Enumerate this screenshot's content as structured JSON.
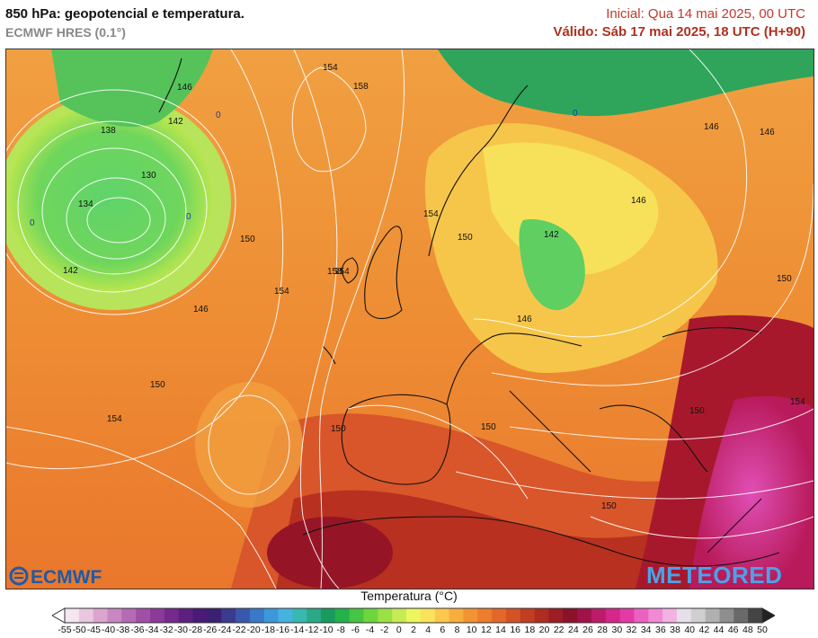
{
  "header": {
    "title": "850 hPa: geopotencial e temperatura.",
    "model": "ECMWF HRES (0.1°)",
    "run_init": "Inicial: Qua 14 mai 2025, 00 UTC",
    "valid_time": "Válido: Sáb 17 mai 2025, 18 UTC (H+90)"
  },
  "map": {
    "contour_labels": [
      "154",
      "158",
      "146",
      "142",
      "138",
      "130",
      "134",
      "142",
      "146",
      "150",
      "154",
      "158",
      "150",
      "154",
      "150",
      "146",
      "154",
      "150",
      "154",
      "150",
      "142",
      "146",
      "146",
      "150",
      "150",
      "146",
      "154",
      "150",
      "154"
    ],
    "freezing_labels": [
      "0",
      "0",
      "0",
      "0"
    ],
    "logos": {
      "left": "ECMWF",
      "right": "METEORED"
    }
  },
  "colorbar": {
    "title": "Temperatura (°C)",
    "ticks": [
      "-55",
      "-50",
      "-45",
      "-40",
      "-38",
      "-36",
      "-34",
      "-32",
      "-30",
      "-28",
      "-26",
      "-24",
      "-22",
      "-20",
      "-18",
      "-16",
      "-14",
      "-12",
      "-10",
      "-8",
      "-6",
      "-4",
      "-2",
      "0",
      "2",
      "4",
      "6",
      "8",
      "10",
      "12",
      "14",
      "16",
      "18",
      "20",
      "22",
      "24",
      "26",
      "28",
      "30",
      "32",
      "34",
      "36",
      "38",
      "40",
      "42",
      "44",
      "46",
      "48",
      "50"
    ],
    "colors": [
      "#f6e6f0",
      "#e9c7e0",
      "#dba5d0",
      "#c887c2",
      "#b56ab4",
      "#a04fa6",
      "#8c3a99",
      "#742a8b",
      "#5e2080",
      "#4a1a78",
      "#3a1f72",
      "#3a3a8e",
      "#3958ad",
      "#3a78c8",
      "#3e97db",
      "#45b2e0",
      "#38b8b0",
      "#2aa888",
      "#1a9a5e",
      "#25b14c",
      "#47c542",
      "#6ed53f",
      "#9be145",
      "#c5ec54",
      "#ecf75e",
      "#fbe25a",
      "#fbc84c",
      "#f8ad3f",
      "#f39334",
      "#ec7d2d",
      "#e36728",
      "#d45224",
      "#c23e20",
      "#ae2c20",
      "#9c1d22",
      "#8a1229",
      "#a0124a",
      "#be1a6a",
      "#d6268a",
      "#e43aa6",
      "#ec60c0",
      "#f08ad4",
      "#f2b2e2",
      "#e8e0e8",
      "#cfcfcf",
      "#b0b0b0",
      "#8e8e8e",
      "#6a6a6a",
      "#444444"
    ]
  }
}
